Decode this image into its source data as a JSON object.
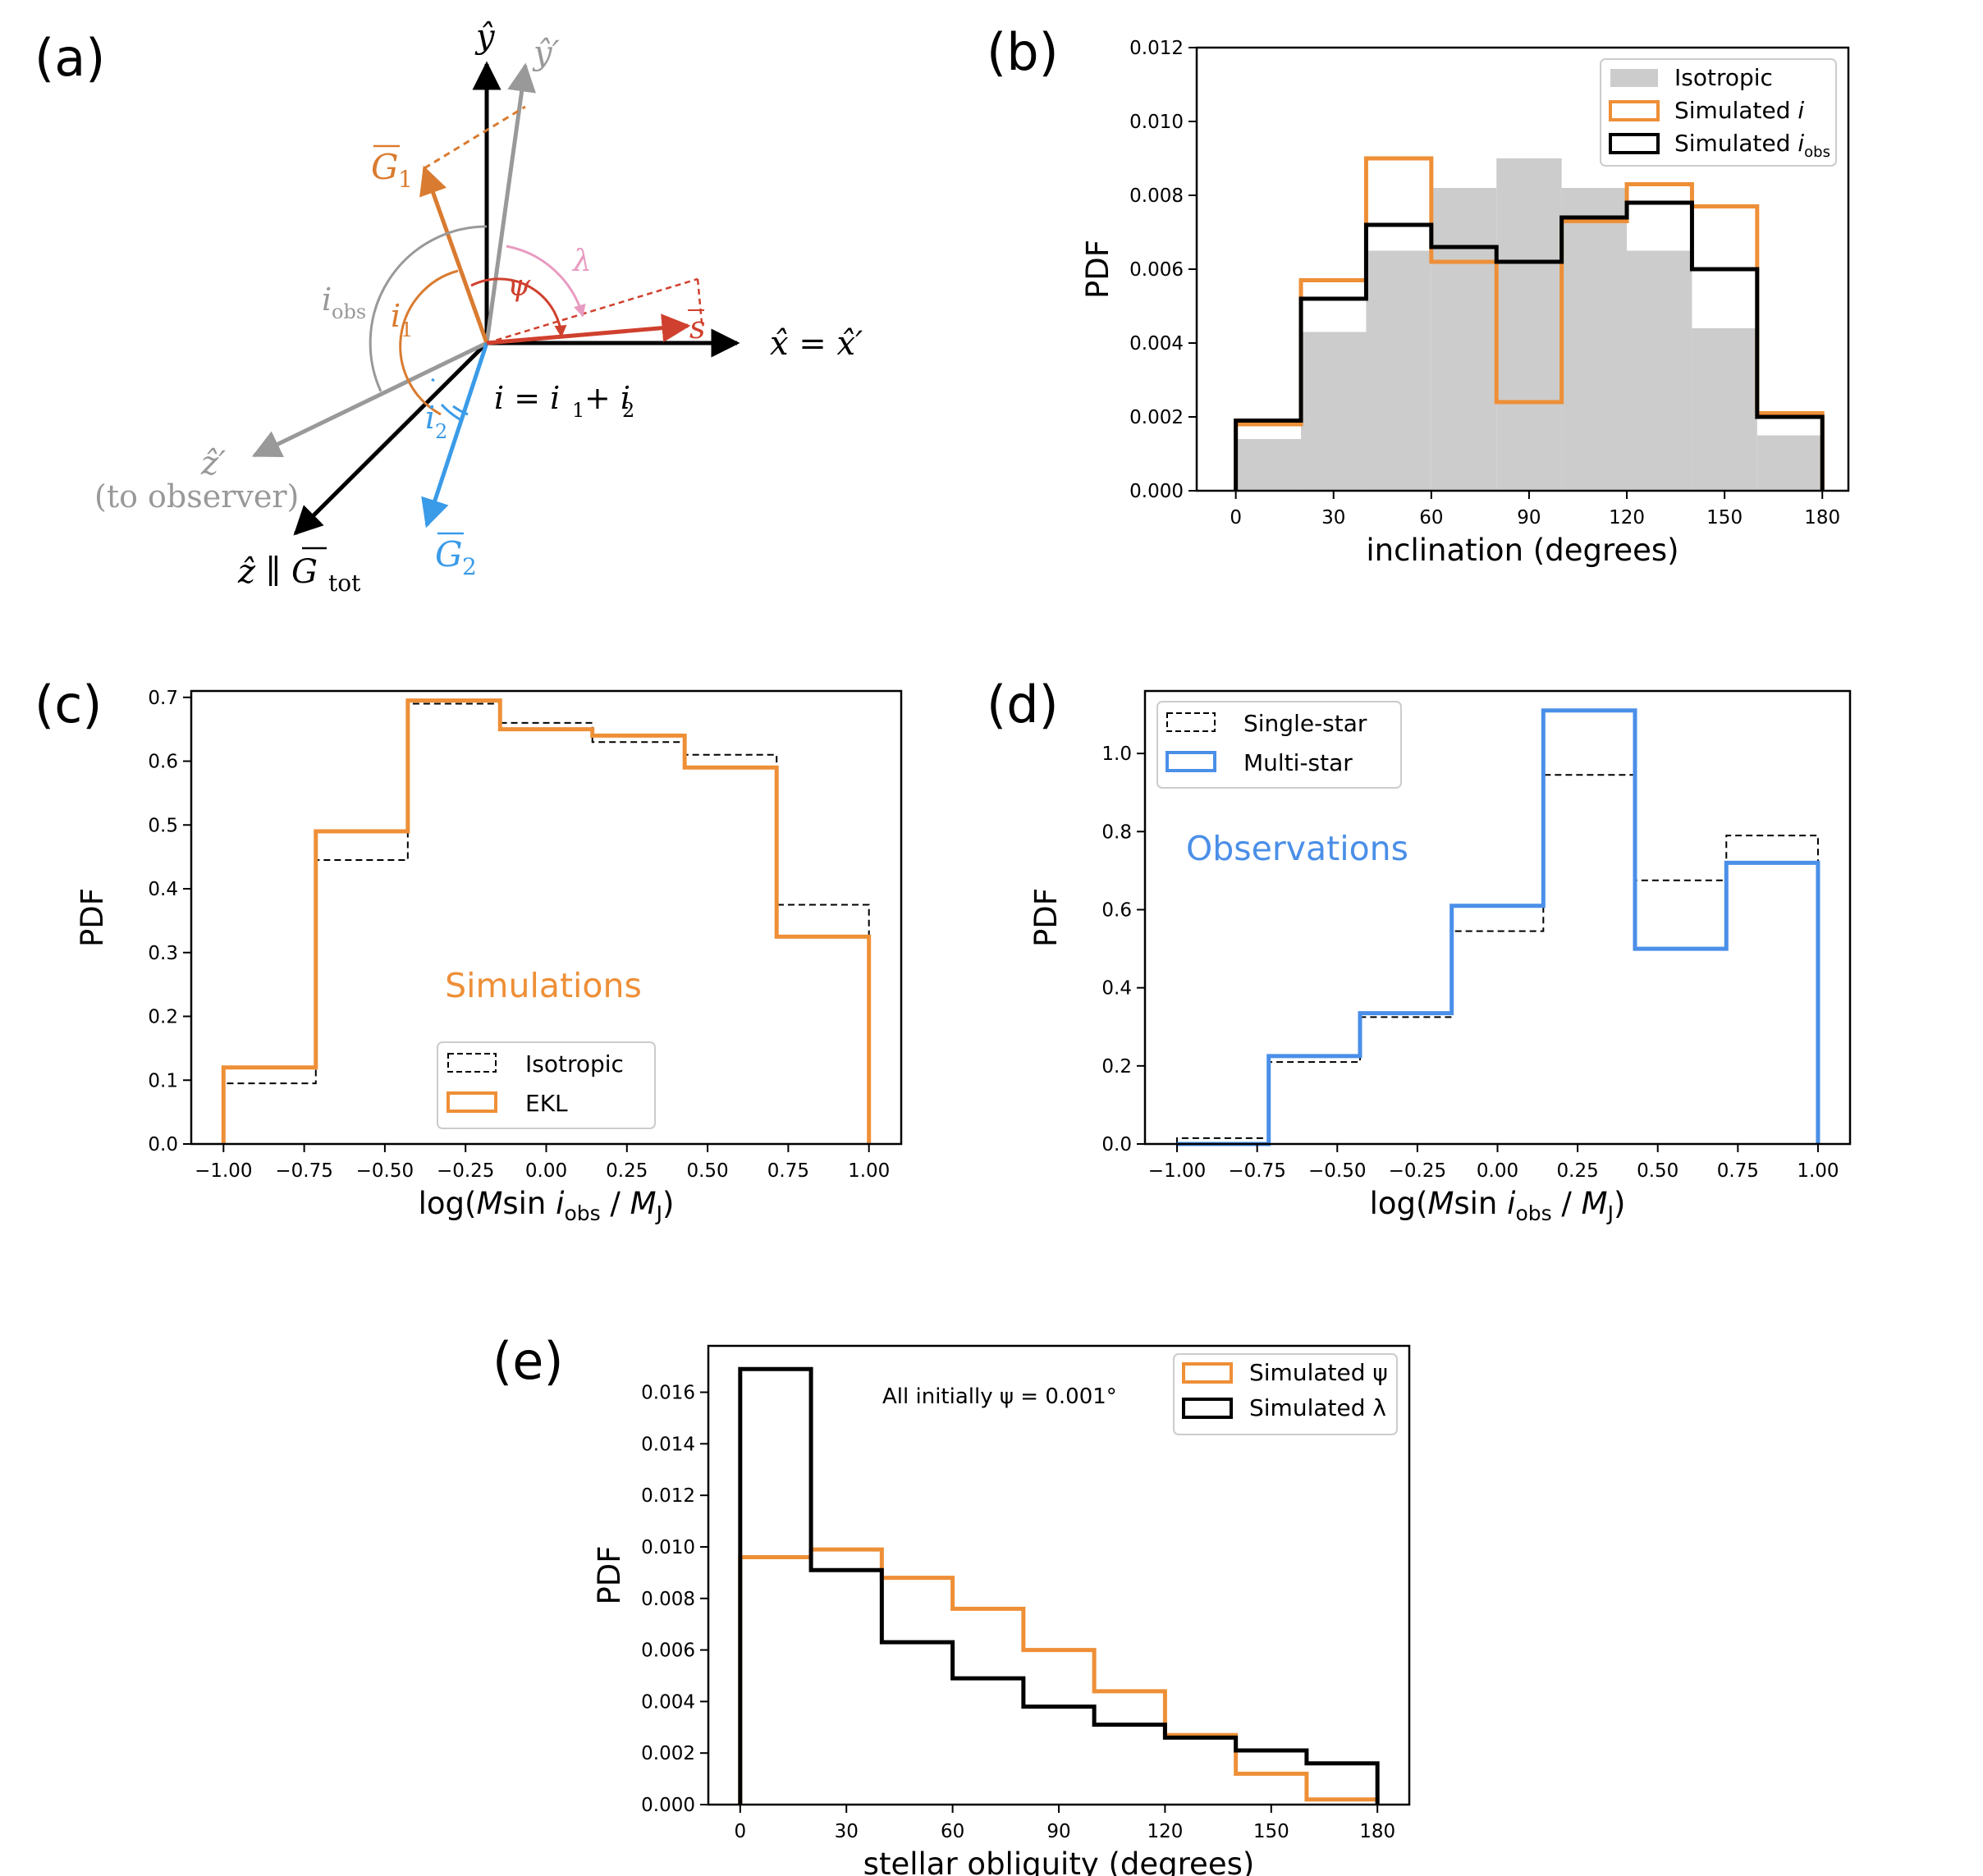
{
  "colors": {
    "orange": "#EE8F37",
    "black": "#000000",
    "gray_fill": "#CCCCCC",
    "blue": "#4A8FE8",
    "diagram_gray": "#999999",
    "diagram_orange": "#D97B30",
    "diagram_red": "#D0402E",
    "diagram_pink": "#E89AC0",
    "diagram_blue": "#3A9BE8"
  },
  "panels": {
    "a": {
      "label": "(a)",
      "y_hat": "ŷ",
      "y_prime": "ŷ′",
      "x_eq": "x̂ = x̂′",
      "z_prime": "ẑ′",
      "to_observer": "(to observer)",
      "z_par": "ẑ ∥ G",
      "tot": "tot",
      "G1": "G",
      "G1_sub": "1",
      "G2": "G",
      "G2_sub": "2",
      "s_vec": "s",
      "i_obs": "i",
      "i_obs_sub": "obs",
      "i1": "i",
      "i1_sub": "1",
      "i2": "i",
      "i2_sub": "2",
      "psi": "ψ",
      "lambda": "λ",
      "equation": "i = i",
      "equation_sub1": "1",
      "equation_plus": "+ i",
      "equation_sub2": "2"
    },
    "b": {
      "label": "(b)"
    },
    "c": {
      "label": "(c)"
    },
    "d": {
      "label": "(d)"
    },
    "e": {
      "label": "(e)"
    }
  },
  "chart_data": [
    {
      "id": "b",
      "type": "bar",
      "style": "histogram",
      "title": "",
      "xlabel": "inclination (degrees)",
      "ylabel": "PDF",
      "xlim": [
        -12,
        188
      ],
      "ylim": [
        0,
        0.012
      ],
      "xticks": [
        0,
        30,
        60,
        90,
        120,
        150,
        180
      ],
      "xtick_labels": [
        "0",
        "30",
        "60",
        "90",
        "120",
        "150",
        "180"
      ],
      "yticks": [
        0,
        0.002,
        0.004,
        0.006,
        0.008,
        0.01,
        0.012
      ],
      "ytick_labels": [
        "0.000",
        "0.002",
        "0.004",
        "0.006",
        "0.008",
        "0.010",
        "0.012"
      ],
      "bin_edges": [
        0,
        20,
        40,
        60,
        80,
        100,
        120,
        140,
        160,
        180
      ],
      "series": [
        {
          "name": "Isotropic",
          "style": "filled",
          "color": "#CCCCCC",
          "values": [
            0.0014,
            0.0043,
            0.0065,
            0.0082,
            0.009,
            0.0082,
            0.0065,
            0.0044,
            0.0015
          ]
        },
        {
          "name": "Simulated i",
          "style": "step",
          "color": "#EE8F37",
          "values": [
            0.0018,
            0.0057,
            0.009,
            0.0062,
            0.0024,
            0.0073,
            0.0083,
            0.0077,
            0.0021
          ]
        },
        {
          "name": "Simulated i_obs",
          "style": "step",
          "color": "#000000",
          "values": [
            0.0019,
            0.0052,
            0.0072,
            0.0066,
            0.0062,
            0.0074,
            0.0078,
            0.006,
            0.002
          ]
        }
      ],
      "legend": {
        "position": "top-right",
        "entries": [
          {
            "text": "Isotropic"
          },
          {
            "text": "Simulated ",
            "math": "i"
          },
          {
            "text": "Simulated ",
            "math": "i",
            "sub": "obs"
          }
        ]
      }
    },
    {
      "id": "c",
      "type": "bar",
      "style": "histogram",
      "xlabel": "log(M sin i_obs / M_J)",
      "ylabel": "PDF",
      "xlim": [
        -1.1,
        1.1
      ],
      "ylim": [
        0,
        0.71
      ],
      "xticks": [
        -1,
        -0.75,
        -0.5,
        -0.25,
        0,
        0.25,
        0.5,
        0.75,
        1
      ],
      "xtick_labels": [
        "−1.00",
        "−0.75",
        "−0.50",
        "−0.25",
        "0.00",
        "0.25",
        "0.50",
        "0.75",
        "1.00"
      ],
      "yticks": [
        0,
        0.1,
        0.2,
        0.3,
        0.4,
        0.5,
        0.6,
        0.7
      ],
      "ytick_labels": [
        "0.0",
        "0.1",
        "0.2",
        "0.3",
        "0.4",
        "0.5",
        "0.6",
        "0.7"
      ],
      "bin_edges": [
        -1,
        -0.714,
        -0.429,
        -0.143,
        0.143,
        0.429,
        0.714,
        1
      ],
      "series": [
        {
          "name": "Isotropic",
          "style": "dashed-step",
          "color": "#000000",
          "values": [
            0.095,
            0.445,
            0.69,
            0.66,
            0.63,
            0.61,
            0.375
          ]
        },
        {
          "name": "EKL",
          "style": "step",
          "color": "#EE8F37",
          "values": [
            0.12,
            0.49,
            0.695,
            0.65,
            0.64,
            0.59,
            0.325
          ]
        }
      ],
      "annotation": "Simulations",
      "legend": {
        "position": "lower-center",
        "entries": [
          {
            "text": "Isotropic"
          },
          {
            "text": "EKL"
          }
        ]
      }
    },
    {
      "id": "d",
      "type": "bar",
      "style": "histogram",
      "xlabel": "log(M sin i_obs / M_J)",
      "ylabel": "PDF",
      "xlim": [
        -1.1,
        1.1
      ],
      "ylim": [
        0,
        1.16
      ],
      "xticks": [
        -1,
        -0.75,
        -0.5,
        -0.25,
        0,
        0.25,
        0.5,
        0.75,
        1
      ],
      "xtick_labels": [
        "−1.00",
        "−0.75",
        "−0.50",
        "−0.25",
        "0.00",
        "0.25",
        "0.50",
        "0.75",
        "1.00"
      ],
      "yticks": [
        0,
        0.2,
        0.4,
        0.6,
        0.8,
        1.0
      ],
      "ytick_labels": [
        "0.0",
        "0.2",
        "0.4",
        "0.6",
        "0.8",
        "1.0"
      ],
      "bin_edges": [
        -1,
        -0.714,
        -0.429,
        -0.143,
        0.143,
        0.429,
        0.714,
        1
      ],
      "series": [
        {
          "name": "Single-star",
          "style": "dashed-step",
          "color": "#000000",
          "values": [
            0.015,
            0.21,
            0.325,
            0.545,
            0.945,
            0.675,
            0.79
          ]
        },
        {
          "name": "Multi-star",
          "style": "step",
          "color": "#4A8FE8",
          "values": [
            0,
            0.225,
            0.335,
            0.61,
            1.11,
            0.5,
            0.72
          ]
        }
      ],
      "annotation": "Observations",
      "legend": {
        "position": "top-left",
        "entries": [
          {
            "text": "Single-star"
          },
          {
            "text": "Multi-star"
          }
        ]
      }
    },
    {
      "id": "e",
      "type": "bar",
      "style": "histogram",
      "xlabel": "stellar obliquity (degrees)",
      "ylabel": "PDF",
      "xlim": [
        -9,
        189
      ],
      "ylim": [
        0,
        0.0178
      ],
      "xticks": [
        0,
        30,
        60,
        90,
        120,
        150,
        180
      ],
      "xtick_labels": [
        "0",
        "30",
        "60",
        "90",
        "120",
        "150",
        "180"
      ],
      "yticks": [
        0,
        0.002,
        0.004,
        0.006,
        0.008,
        0.01,
        0.012,
        0.014,
        0.016
      ],
      "ytick_labels": [
        "0.000",
        "0.002",
        "0.004",
        "0.006",
        "0.008",
        "0.010",
        "0.012",
        "0.014",
        "0.016"
      ],
      "bin_edges": [
        0,
        20,
        40,
        60,
        80,
        100,
        120,
        140,
        160,
        180
      ],
      "series": [
        {
          "name": "Simulated ψ",
          "style": "step",
          "color": "#EE8F37",
          "values": [
            0.0096,
            0.0099,
            0.0088,
            0.0076,
            0.006,
            0.0044,
            0.0027,
            0.0012,
            0.0002
          ]
        },
        {
          "name": "Simulated λ",
          "style": "step",
          "color": "#000000",
          "values": [
            0.0169,
            0.0091,
            0.0063,
            0.0049,
            0.0038,
            0.0031,
            0.0026,
            0.0021,
            0.0016
          ]
        }
      ],
      "annotation": "All initially ψ = 0.001°",
      "legend": {
        "position": "top-right",
        "entries": [
          {
            "text": "Simulated ψ"
          },
          {
            "text": "Simulated λ"
          }
        ]
      }
    }
  ]
}
